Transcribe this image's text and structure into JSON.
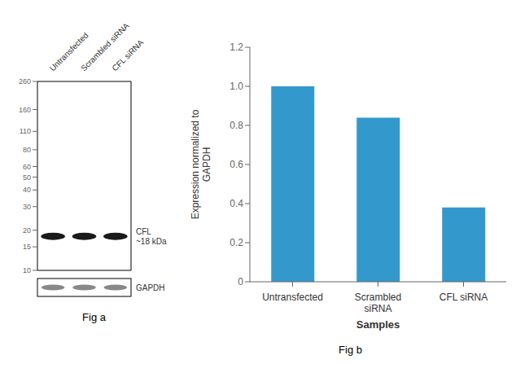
{
  "chart_data": [
    {
      "type": "blot",
      "title": "Fig a",
      "categories": [
        "Untransfected",
        "Scrambled siRNA",
        "CFL siRNA"
      ],
      "values": [
        18,
        18,
        18
      ],
      "color": "#1a1a1a",
      "ylim": [
        10,
        260
      ],
      "yticks": [
        260,
        160,
        110,
        80,
        60,
        50,
        40,
        30,
        20,
        15,
        10
      ],
      "log": "y",
      "annotations": [
        "CFL\n~18 kDa",
        "GAPDH"
      ]
    },
    {
      "type": "bar",
      "title": "Fig b",
      "categories": [
        "Untransfected",
        "Scrambled\nsiRNA",
        "CFL siRNA"
      ],
      "values": [
        1.0,
        0.84,
        0.38
      ],
      "color": "#3399cc",
      "xlabel": "Samples",
      "ylabel": "Expression normalized to\nGAPDH",
      "ylim": [
        0,
        1.2
      ],
      "yticks": [
        0,
        0.2,
        0.4,
        0.6,
        0.8,
        {
          "value": 1.0,
          "label": "1.0"
        },
        1.2
      ],
      "grid": false
    }
  ]
}
